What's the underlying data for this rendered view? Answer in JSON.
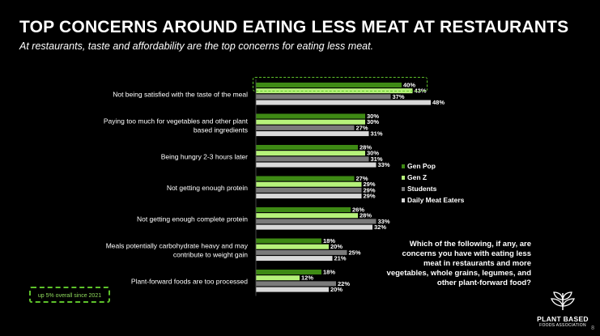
{
  "header": {
    "title": "TOP CONCERNS AROUND EATING LESS MEAT AT RESTAURANTS",
    "subtitle": "At restaurants, taste and affordability are the top concerns for eating less meat."
  },
  "question": "Which of the following, if any, are concerns you have with eating less meat in restaurants and more vegetables, whole grains, legumes, and other plant-forward food?",
  "callout": "up 5% overall since 2021",
  "logo": {
    "line1": "PLANT BASED",
    "line2": "FOODS ASSOCIATION",
    "icon": "plant-leaf-icon"
  },
  "page_number": "8",
  "colors": {
    "gen_pop": "#3e8a14",
    "gen_z": "#b6f27a",
    "students": "#7a7a7a",
    "daily_meat_eaters": "#d9d9d9",
    "accent": "#5ec22b"
  },
  "chart_data": {
    "type": "bar",
    "orientation": "horizontal",
    "categories": [
      "Not being satisfied with the taste of the meal",
      "Paying too much for vegetables and other plant based ingredients",
      "Being hungry 2-3 hours later",
      "Not getting enough protein",
      "Not getting enough complete protein",
      "Meals potentially carbohydrate heavy and may contribute to weight gain",
      "Plant-forward foods are too processed"
    ],
    "series": [
      {
        "name": "Gen Pop",
        "values": [
          40,
          30,
          28,
          27,
          26,
          18,
          18
        ]
      },
      {
        "name": "Gen Z",
        "values": [
          43,
          30,
          30,
          29,
          28,
          20,
          12
        ]
      },
      {
        "name": "Students",
        "values": [
          37,
          27,
          31,
          29,
          33,
          25,
          22
        ]
      },
      {
        "name": "Daily Meat Eaters",
        "values": [
          48,
          31,
          33,
          29,
          32,
          21,
          20
        ]
      }
    ],
    "value_suffix": "%",
    "legend_position": "right"
  }
}
